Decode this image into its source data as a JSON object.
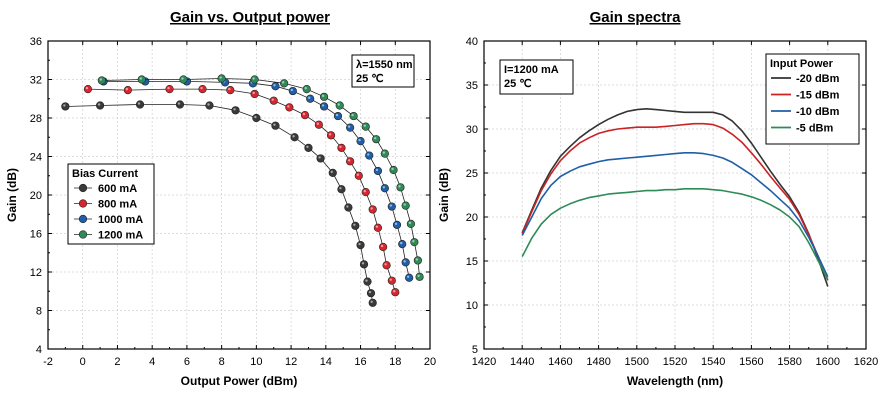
{
  "chart_data": [
    {
      "type": "scatter",
      "title": "Gain vs. Output power",
      "xlabel": "Output Power (dBm)",
      "ylabel": "Gain (dB)",
      "xlim": [
        -2,
        20
      ],
      "ylim": [
        4,
        36
      ],
      "xticks": [
        -2,
        0,
        2,
        4,
        6,
        8,
        10,
        12,
        14,
        16,
        18,
        20
      ],
      "yticks": [
        4,
        8,
        12,
        16,
        20,
        24,
        28,
        32,
        36
      ],
      "grid": true,
      "annotation": [
        "λ=1550 nm",
        "25 ℃"
      ],
      "legend": {
        "title": "Bias Current",
        "placement": "left-middle"
      },
      "series": [
        {
          "name": "600 mA",
          "color": "#3a3a3a",
          "x": [
            -1.0,
            1.0,
            3.3,
            5.6,
            7.3,
            8.8,
            10.0,
            11.1,
            12.2,
            13.0,
            13.7,
            14.4,
            14.9,
            15.3,
            15.7,
            16.0,
            16.2,
            16.4,
            16.6,
            16.7
          ],
          "y": [
            29.2,
            29.3,
            29.4,
            29.4,
            29.3,
            28.8,
            28.0,
            27.2,
            26.0,
            24.9,
            23.8,
            22.3,
            20.6,
            18.7,
            16.8,
            14.8,
            12.8,
            11.0,
            9.8,
            8.8
          ]
        },
        {
          "name": "800 mA",
          "color": "#d9262e",
          "x": [
            0.3,
            2.6,
            5.0,
            6.9,
            8.5,
            9.9,
            11.0,
            11.9,
            12.8,
            13.6,
            14.3,
            14.9,
            15.4,
            15.9,
            16.3,
            16.7,
            17.0,
            17.3,
            17.5,
            17.8,
            18.0
          ],
          "y": [
            31.0,
            30.9,
            31.0,
            31.0,
            30.9,
            30.5,
            29.8,
            29.1,
            28.3,
            27.3,
            26.2,
            24.9,
            23.5,
            22.0,
            20.3,
            18.5,
            16.6,
            14.6,
            12.7,
            11.1,
            9.9
          ]
        },
        {
          "name": "1000 mA",
          "color": "#1f5ea8",
          "x": [
            1.2,
            3.6,
            6.0,
            8.2,
            9.8,
            11.1,
            12.1,
            13.1,
            13.9,
            14.7,
            15.4,
            16.0,
            16.5,
            17.0,
            17.4,
            17.8,
            18.1,
            18.4,
            18.6,
            18.8
          ],
          "y": [
            31.8,
            31.8,
            31.8,
            31.7,
            31.6,
            31.3,
            30.8,
            30.0,
            29.2,
            28.2,
            27.0,
            25.6,
            24.1,
            22.5,
            20.7,
            18.8,
            16.9,
            14.9,
            13.0,
            11.4
          ]
        },
        {
          "name": "1200 mA",
          "color": "#2e8b57",
          "x": [
            1.1,
            3.4,
            5.8,
            8.0,
            9.9,
            11.6,
            12.9,
            13.9,
            14.8,
            15.6,
            16.3,
            16.9,
            17.4,
            17.9,
            18.3,
            18.6,
            18.9,
            19.1,
            19.3,
            19.4
          ],
          "y": [
            31.9,
            32.0,
            32.0,
            32.1,
            32.0,
            31.6,
            31.0,
            30.2,
            29.3,
            28.2,
            27.1,
            25.8,
            24.3,
            22.6,
            20.8,
            18.9,
            17.0,
            15.1,
            13.2,
            11.5
          ]
        }
      ]
    },
    {
      "type": "line",
      "title": "Gain spectra",
      "xlabel": "Wavelength (nm)",
      "ylabel": "Gain (dB)",
      "xlim": [
        1420,
        1620
      ],
      "ylim": [
        5,
        40
      ],
      "xticks": [
        1420,
        1440,
        1460,
        1480,
        1500,
        1520,
        1540,
        1560,
        1580,
        1600,
        1620
      ],
      "yticks": [
        5,
        10,
        15,
        20,
        25,
        30,
        35,
        40
      ],
      "grid": true,
      "annotation": [
        "I=1200 mA",
        "25 ℃"
      ],
      "legend": {
        "title": "Input Power",
        "placement": "top-right"
      },
      "x": [
        1440,
        1445,
        1450,
        1455,
        1460,
        1465,
        1470,
        1475,
        1480,
        1485,
        1490,
        1495,
        1500,
        1505,
        1510,
        1515,
        1520,
        1525,
        1530,
        1535,
        1540,
        1545,
        1550,
        1555,
        1560,
        1565,
        1570,
        1575,
        1580,
        1585,
        1590,
        1595,
        1600
      ],
      "series": [
        {
          "name": "-20 dBm",
          "color": "#333333",
          "values": [
            18.2,
            20.8,
            23.3,
            25.3,
            26.9,
            28.0,
            29.0,
            29.8,
            30.5,
            31.1,
            31.6,
            32.0,
            32.2,
            32.3,
            32.2,
            32.1,
            32.0,
            31.9,
            31.9,
            31.9,
            31.9,
            31.6,
            30.9,
            29.8,
            28.4,
            26.8,
            25.2,
            23.7,
            22.3,
            20.5,
            18.1,
            15.2,
            12.1
          ]
        },
        {
          "name": "-15 dBm",
          "color": "#cc2222",
          "values": [
            18.1,
            20.6,
            23.0,
            24.9,
            26.4,
            27.5,
            28.4,
            29.0,
            29.5,
            29.8,
            30.0,
            30.1,
            30.2,
            30.2,
            30.2,
            30.3,
            30.4,
            30.5,
            30.6,
            30.6,
            30.5,
            30.1,
            29.4,
            28.5,
            27.3,
            26.0,
            24.6,
            23.3,
            22.0,
            20.3,
            18.0,
            15.5,
            12.8
          ]
        },
        {
          "name": "-10 dBm",
          "color": "#1f5ea8",
          "values": [
            17.9,
            20.0,
            22.1,
            23.6,
            24.6,
            25.2,
            25.7,
            26.0,
            26.3,
            26.5,
            26.6,
            26.7,
            26.8,
            26.9,
            27.0,
            27.1,
            27.2,
            27.3,
            27.3,
            27.2,
            27.0,
            26.7,
            26.2,
            25.5,
            24.8,
            23.9,
            23.0,
            22.0,
            21.0,
            19.6,
            17.7,
            15.5,
            13.2
          ]
        },
        {
          "name": "-5 dBm",
          "color": "#2e8b57",
          "values": [
            15.5,
            17.6,
            19.2,
            20.3,
            21.0,
            21.5,
            21.9,
            22.2,
            22.4,
            22.6,
            22.7,
            22.8,
            22.9,
            23.0,
            23.0,
            23.1,
            23.1,
            23.2,
            23.2,
            23.2,
            23.1,
            23.0,
            22.8,
            22.6,
            22.3,
            21.9,
            21.4,
            20.8,
            20.0,
            18.9,
            17.1,
            15.0,
            12.9
          ]
        }
      ]
    }
  ]
}
